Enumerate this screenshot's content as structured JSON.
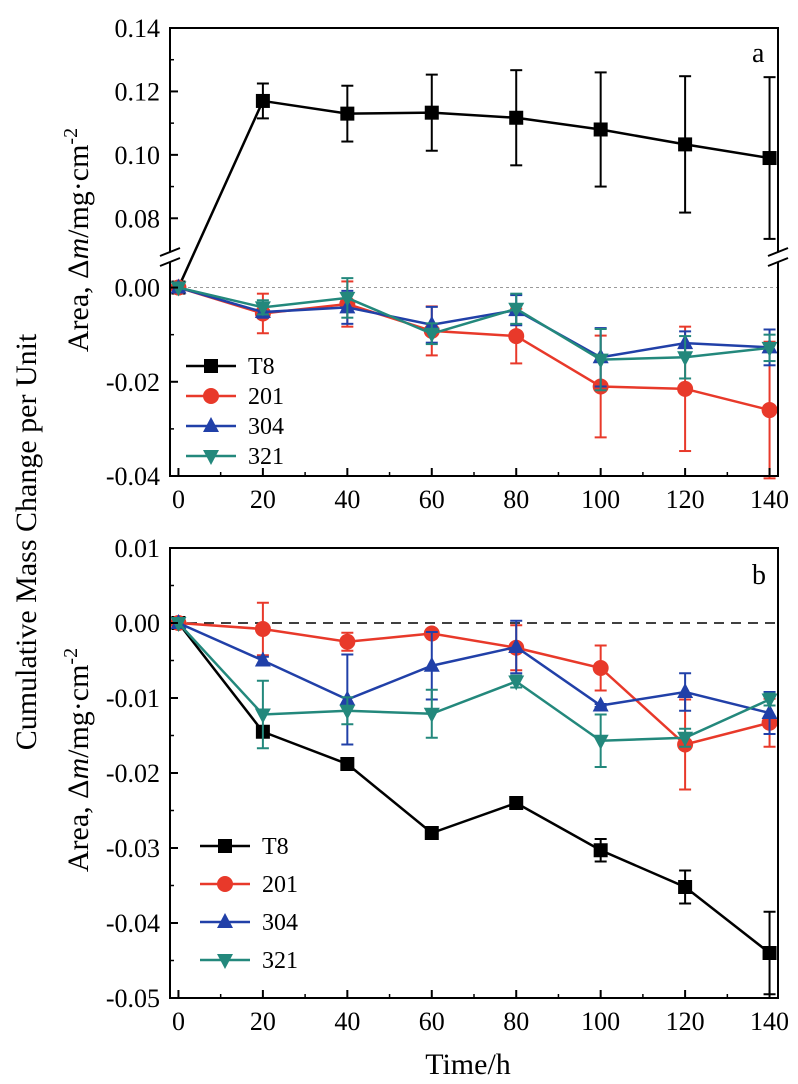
{
  "chart_data": [
    {
      "panel": "a",
      "type": "line",
      "panel_label": "a",
      "xlabel": "",
      "ylim_upper": [
        0.07,
        0.14
      ],
      "ylim_lower": [
        -0.04,
        0.005
      ],
      "xlim": [
        -2,
        142
      ],
      "xticks": [
        "0",
        "20",
        "40",
        "60",
        "80",
        "100",
        "120",
        "140"
      ],
      "yticks_upper": [
        "0.08",
        "0.10",
        "0.12",
        "0.14"
      ],
      "yticks_lower": [
        "-0.04",
        "-0.02",
        "0.00"
      ],
      "axis_break": true,
      "legend_position": "bottom-left",
      "x": [
        0,
        20,
        40,
        60,
        80,
        100,
        120,
        140
      ],
      "series": [
        {
          "name": "T8",
          "color": "#000000",
          "marker": "square",
          "values": [
            0.0,
            0.117,
            0.113,
            0.1133,
            0.1117,
            0.108,
            0.1033,
            0.099
          ],
          "errors": [
            0.0,
            0.0055,
            0.0088,
            0.012,
            0.015,
            0.018,
            0.0215,
            0.0255
          ]
        },
        {
          "name": "201",
          "color": "#e8392a",
          "marker": "circle",
          "values": [
            0.0,
            -0.0055,
            -0.0035,
            -0.0092,
            -0.0103,
            -0.021,
            -0.0215,
            -0.026
          ],
          "errors": [
            0.0,
            0.0042,
            0.0048,
            0.0052,
            0.0058,
            0.0108,
            0.0132,
            0.0145
          ]
        },
        {
          "name": "304",
          "color": "#2140a8",
          "marker": "triangle-up",
          "values": [
            0.0,
            -0.0052,
            -0.0042,
            -0.0079,
            -0.0048,
            -0.0148,
            -0.0118,
            -0.0127
          ],
          "errors": [
            0.0,
            0.0012,
            0.0035,
            0.0038,
            0.0032,
            0.0062,
            0.0025,
            0.0038
          ]
        },
        {
          "name": "321",
          "color": "#23887c",
          "marker": "triangle-down",
          "values": [
            0.0,
            -0.0042,
            -0.0022,
            -0.0098,
            -0.0045,
            -0.0153,
            -0.0148,
            -0.0128
          ],
          "errors": [
            0.0,
            0.0015,
            0.0042,
            0.0022,
            0.0032,
            0.0065,
            0.0045,
            0.0028
          ]
        }
      ]
    },
    {
      "panel": "b",
      "type": "line",
      "panel_label": "b",
      "xlabel": "Time/h",
      "ylim": [
        -0.05,
        0.01
      ],
      "xlim": [
        -2,
        142
      ],
      "xticks": [
        "0",
        "20",
        "40",
        "60",
        "80",
        "100",
        "120",
        "140"
      ],
      "yticks": [
        "-0.05",
        "-0.04",
        "-0.03",
        "-0.02",
        "-0.01",
        "0.00",
        "0.01"
      ],
      "legend_position": "bottom-left",
      "x": [
        0,
        20,
        40,
        60,
        80,
        100,
        120,
        140
      ],
      "series": [
        {
          "name": "T8",
          "color": "#000000",
          "marker": "square",
          "values": [
            0.0,
            -0.0145,
            -0.0188,
            -0.028,
            -0.024,
            -0.0303,
            -0.0352,
            -0.044
          ],
          "errors": [
            0.0,
            0.0002,
            0.0002,
            0.0002,
            0.0002,
            0.0015,
            0.0022,
            0.0055
          ]
        },
        {
          "name": "201",
          "color": "#e8392a",
          "marker": "circle",
          "values": [
            0.0,
            -0.0008,
            -0.0025,
            -0.0014,
            -0.0033,
            -0.006,
            -0.0162,
            -0.0133
          ],
          "errors": [
            0.0,
            0.0035,
            0.0012,
            0.0002,
            0.003,
            0.003,
            0.006,
            0.0032
          ]
        },
        {
          "name": "304",
          "color": "#2140a8",
          "marker": "triangle-up",
          "values": [
            0.0,
            -0.005,
            -0.0102,
            -0.0057,
            -0.0032,
            -0.011,
            -0.0092,
            -0.012
          ],
          "errors": [
            0.0,
            0.0005,
            0.006,
            0.0045,
            0.0035,
            0.0002,
            0.0025,
            0.0028
          ]
        },
        {
          "name": "321",
          "color": "#23887c",
          "marker": "triangle-down",
          "values": [
            0.0,
            -0.0122,
            -0.0117,
            -0.0121,
            -0.0078,
            -0.0157,
            -0.0153,
            -0.0102
          ],
          "errors": [
            0.0,
            0.0045,
            0.0018,
            0.0032,
            0.0008,
            0.0035,
            0.0012,
            0.0008
          ]
        }
      ]
    }
  ],
  "ylabel": {
    "line1": "Cumulative Mass Change per Unit",
    "line2_prefix": "Area, Δ",
    "line2_italic": "m",
    "line2_units": "/mg·cm",
    "line2_sup": "-2"
  },
  "reference_lines": {
    "a_zero_style": "dotted",
    "b_zero_style": "dashed"
  }
}
